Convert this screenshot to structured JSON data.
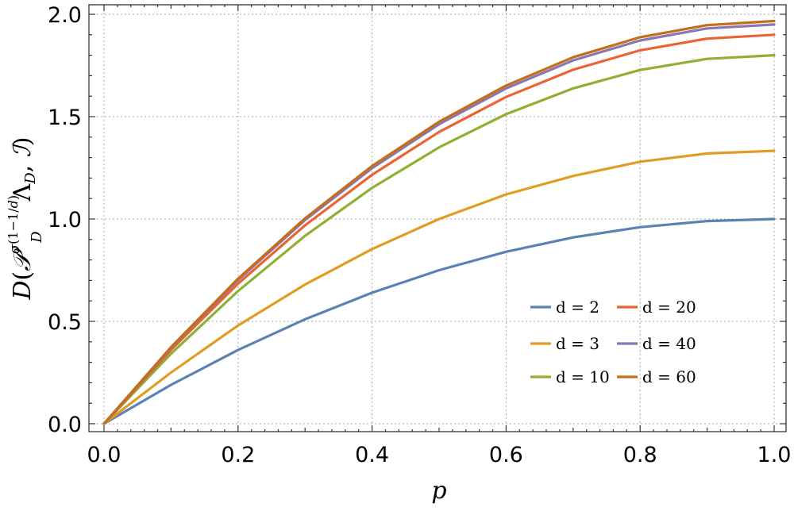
{
  "chart_data": {
    "type": "line",
    "title": "",
    "xlabel": "p",
    "ylabel": "D(P_D^{σ(1−1/d)} Λ_D, I)",
    "xlim": [
      0,
      1
    ],
    "ylim": [
      0,
      2
    ],
    "grid": true,
    "legend_position": "bottom-right",
    "x": [
      0.0,
      0.1,
      0.2,
      0.3,
      0.4,
      0.5,
      0.6,
      0.7,
      0.8,
      0.9,
      1.0
    ],
    "x_ticks": [
      "0.0",
      "0.2",
      "0.4",
      "0.6",
      "0.8",
      "1.0"
    ],
    "y_ticks": [
      "0.0",
      "0.5",
      "1.0",
      "1.5",
      "2.0"
    ],
    "series": [
      {
        "name": "d = 2",
        "color": "#5e81b5",
        "values": [
          0,
          0.19,
          0.36,
          0.51,
          0.64,
          0.75,
          0.84,
          0.91,
          0.96,
          0.99,
          1.0
        ]
      },
      {
        "name": "d = 3",
        "color": "#e19c24",
        "values": [
          0,
          0.25,
          0.48,
          0.68,
          0.853,
          1.0,
          1.12,
          1.21,
          1.28,
          1.32,
          1.333
        ]
      },
      {
        "name": "d = 10",
        "color": "#8fb032",
        "values": [
          0,
          0.342,
          0.648,
          0.918,
          1.152,
          1.35,
          1.512,
          1.638,
          1.728,
          1.782,
          1.8
        ]
      },
      {
        "name": "d = 20",
        "color": "#eb6235",
        "values": [
          0,
          0.361,
          0.684,
          0.969,
          1.216,
          1.425,
          1.596,
          1.729,
          1.824,
          1.881,
          1.9
        ]
      },
      {
        "name": "d = 40",
        "color": "#8778b3",
        "values": [
          0,
          0.371,
          0.702,
          0.995,
          1.248,
          1.463,
          1.638,
          1.775,
          1.872,
          1.931,
          1.95
        ]
      },
      {
        "name": "d = 60",
        "color": "#c56e1a",
        "values": [
          0,
          0.374,
          0.708,
          1.003,
          1.259,
          1.475,
          1.652,
          1.79,
          1.888,
          1.947,
          1.967
        ]
      }
    ]
  }
}
